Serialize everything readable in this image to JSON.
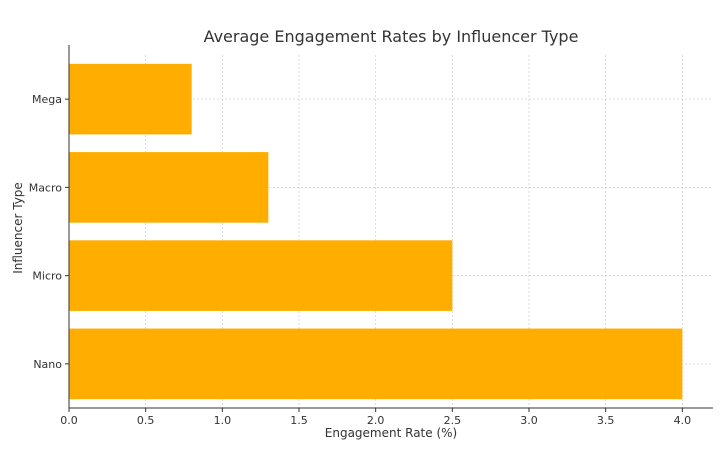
{
  "chart_data": {
    "type": "bar",
    "orientation": "horizontal",
    "title": "Average Engagement Rates by Influencer Type",
    "xlabel": "Engagement Rate (%)",
    "ylabel": "Influencer Type",
    "categories": [
      "Nano",
      "Micro",
      "Macro",
      "Mega"
    ],
    "values": [
      4.0,
      2.5,
      1.3,
      0.8
    ],
    "xlim": [
      0,
      4.2
    ],
    "xticks": [
      0.0,
      0.5,
      1.0,
      1.5,
      2.0,
      2.5,
      3.0,
      3.5,
      4.0
    ],
    "xtick_labels": [
      "0.0",
      "0.5",
      "1.0",
      "1.5",
      "2.0",
      "2.5",
      "3.0",
      "3.5",
      "4.0"
    ],
    "grid": true,
    "bar_color": "#FFAE00",
    "grid_color": "#d0d0d0",
    "axis_color": "#333333"
  }
}
